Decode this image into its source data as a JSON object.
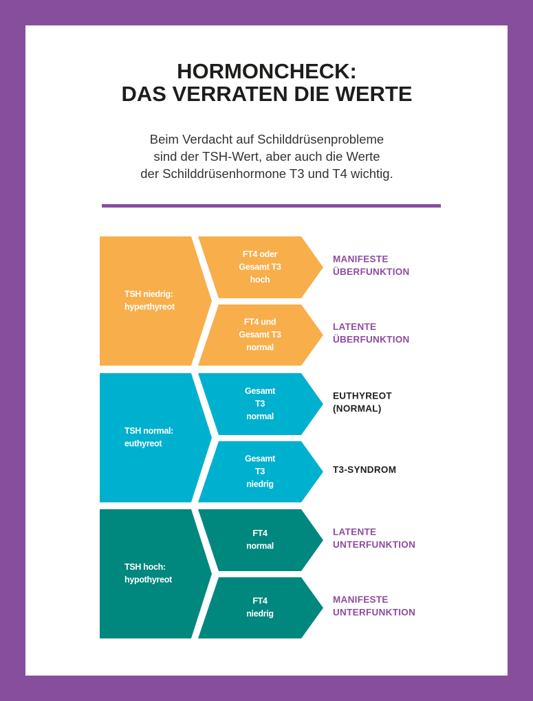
{
  "title": [
    "HORMONCHECK:",
    "DAS VERRATEN DIE WERTE"
  ],
  "subtitle": [
    "Beim Verdacht auf Schilddrüsenprobleme",
    "sind der TSH-Wert, aber auch die Werte",
    "der Schilddrüsenhormone T3 und T4 wichtig."
  ],
  "groups": [
    {
      "label": [
        "TSH niedrig:",
        "hyperthyreot"
      ],
      "color": "#f8ae4b",
      "rows": [
        {
          "test": [
            "FT4 oder",
            "Gesamt T3",
            "hoch"
          ],
          "result": [
            "MANIFESTE",
            "ÜBERFUNKTION"
          ],
          "result_color": "#8e4ba0"
        },
        {
          "test": [
            "FT4 und",
            "Gesamt T3",
            "normal"
          ],
          "result": [
            "LATENTE",
            "ÜBERFUNKTION"
          ],
          "result_color": "#8e4ba0"
        }
      ]
    },
    {
      "label": [
        "TSH normal:",
        "euthyreot"
      ],
      "color": "#00b1cf",
      "rows": [
        {
          "test": [
            "Gesamt",
            "T3",
            "normal"
          ],
          "result": [
            "EUTHYREOT",
            "(NORMAL)"
          ],
          "result_color": "#1d1d1b"
        },
        {
          "test": [
            "Gesamt",
            "T3",
            "niedrig"
          ],
          "result": [
            "T3-SYNDROM"
          ],
          "result_color": "#1d1d1b"
        }
      ]
    },
    {
      "label": [
        "TSH hoch:",
        "hypothyreot"
      ],
      "color": "#00877e",
      "rows": [
        {
          "test": [
            "FT4",
            "normal"
          ],
          "result": [
            "LATENTE",
            "UNTERFUNKTION"
          ],
          "result_color": "#8e4ba0"
        },
        {
          "test": [
            "FT4",
            "niedrig"
          ],
          "result": [
            "MANIFESTE",
            "UNTERFUNKTION"
          ],
          "result_color": "#8e4ba0"
        }
      ]
    }
  ]
}
